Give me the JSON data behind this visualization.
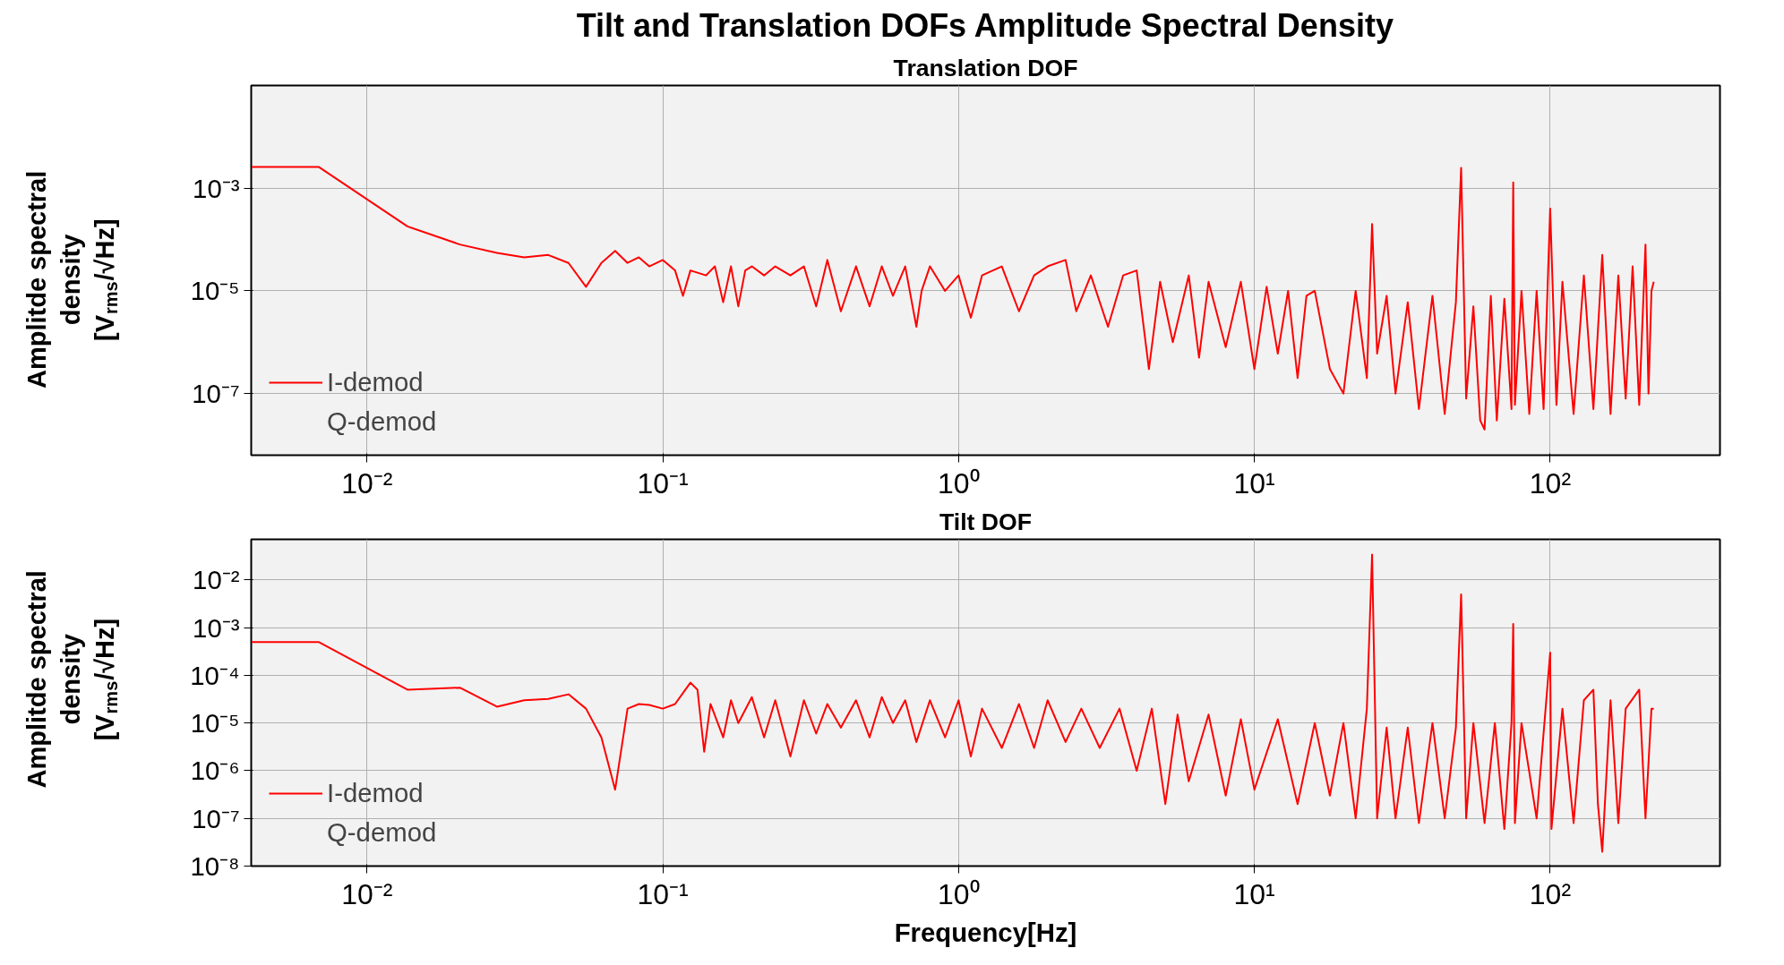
{
  "chart_data": [
    {
      "type": "line",
      "title": "Tilt and Translation DOFs Amplitude Spectral Density",
      "subtitle": "Translation DOF",
      "ylabel": "Amplitde spectral density [V$_{rms}$/√Hz]",
      "log": "xy",
      "grid": true,
      "legend": "bottom left",
      "xlim": [
        0.00406,
        375
      ],
      "ylim": [
        6.3e-09,
        0.1
      ],
      "xticks": [
        {
          "value": 0.01,
          "label": "10⁻²"
        },
        {
          "value": 0.1,
          "label": "10⁻¹"
        },
        {
          "value": 1,
          "label": "10⁰"
        },
        {
          "value": 10,
          "label": "10¹"
        },
        {
          "value": 100,
          "label": "10²"
        }
      ],
      "yticks": [
        {
          "value": 0.001,
          "label": "10⁻³"
        },
        {
          "value": 1e-05,
          "label": "10⁻⁵"
        },
        {
          "value": 1e-07,
          "label": "10⁻⁷"
        }
      ],
      "series": [
        {
          "name": "I-demod",
          "color": "#ff0000",
          "x": [
            0.00406,
            0.00686,
            0.0137,
            0.0206,
            0.0275,
            0.034,
            0.041,
            0.048,
            0.055,
            0.062,
            0.069,
            0.076,
            0.083,
            0.09,
            0.1,
            0.11,
            0.117,
            0.124,
            0.14,
            0.15,
            0.16,
            0.17,
            0.18,
            0.19,
            0.2,
            0.22,
            0.24,
            0.27,
            0.3,
            0.33,
            0.36,
            0.4,
            0.45,
            0.5,
            0.55,
            0.6,
            0.66,
            0.72,
            0.75,
            0.8,
            0.9,
            1.0,
            1.1,
            1.2,
            1.4,
            1.6,
            1.8,
            2.0,
            2.3,
            2.5,
            2.8,
            3.2,
            3.6,
            4.0,
            4.4,
            4.8,
            5.3,
            6.0,
            6.5,
            7.0,
            8.0,
            9.0,
            10,
            11,
            12,
            13,
            14,
            15,
            16,
            18,
            20,
            22,
            24,
            25,
            26,
            28,
            30,
            33,
            36,
            40,
            44,
            48,
            50,
            52,
            55,
            58,
            60,
            63,
            66,
            70,
            74,
            75,
            76,
            80,
            85,
            90,
            95,
            100,
            105,
            110,
            120,
            130,
            140,
            150,
            160,
            170,
            180,
            190,
            200,
            210,
            215,
            220,
            224
          ],
          "values": [
            0.0026,
            0.0026,
            0.00018,
            8e-05,
            5.5e-05,
            4.5e-05,
            5e-05,
            3.5e-05,
            1.2e-05,
            3.5e-05,
            6e-05,
            3.5e-05,
            4.5e-05,
            3e-05,
            4e-05,
            2.5e-05,
            8e-06,
            2.5e-05,
            2e-05,
            3e-05,
            6e-06,
            3e-05,
            5e-06,
            2.5e-05,
            3e-05,
            2e-05,
            3e-05,
            2e-05,
            3e-05,
            5e-06,
            4e-05,
            4e-06,
            3e-05,
            5e-06,
            3e-05,
            8e-06,
            3e-05,
            2e-06,
            1e-05,
            3e-05,
            1e-05,
            2e-05,
            3e-06,
            2e-05,
            3e-05,
            4e-06,
            2e-05,
            3e-05,
            4e-05,
            4e-06,
            2e-05,
            2e-06,
            2e-05,
            2.5e-05,
            3e-07,
            1.5e-05,
            1e-06,
            2e-05,
            5e-07,
            1.5e-05,
            8e-07,
            1.5e-05,
            3e-07,
            1.2e-05,
            6e-07,
            1e-05,
            2e-07,
            8e-06,
            1e-05,
            3e-07,
            1e-07,
            1e-05,
            2e-07,
            0.0002,
            6e-07,
            8e-06,
            1e-07,
            6e-06,
            5e-08,
            8e-06,
            4e-08,
            6e-06,
            0.0025,
            8e-08,
            5e-06,
            3e-08,
            2e-08,
            8e-06,
            3e-08,
            7e-06,
            5e-08,
            0.0013,
            6e-08,
            1e-05,
            4e-08,
            1e-05,
            5e-08,
            0.0004,
            6e-08,
            1.5e-05,
            4e-08,
            2e-05,
            5e-08,
            5e-05,
            4e-08,
            2e-05,
            8e-08,
            3e-05,
            6e-08,
            8e-05,
            1e-07,
            1e-05,
            1.5e-05
          ]
        },
        {
          "name": "Q-demod",
          "color": null
        }
      ]
    },
    {
      "type": "line",
      "title": "Tilt DOF",
      "xlabel": "Frequency[Hz]",
      "ylabel": "Amplitde spectral density [V$_{rms}$/√Hz]",
      "log": "xy",
      "grid": true,
      "legend": "bottom left",
      "xlim": [
        0.00406,
        375
      ],
      "ylim": [
        1e-08,
        0.071
      ],
      "xticks": [
        {
          "value": 0.01,
          "label": "10⁻²"
        },
        {
          "value": 0.1,
          "label": "10⁻¹"
        },
        {
          "value": 1,
          "label": "10⁰"
        },
        {
          "value": 10,
          "label": "10¹"
        },
        {
          "value": 100,
          "label": "10²"
        }
      ],
      "yticks": [
        {
          "value": 0.01,
          "label": "10⁻²"
        },
        {
          "value": 0.001,
          "label": "10⁻³"
        },
        {
          "value": 0.0001,
          "label": "10⁻⁴"
        },
        {
          "value": 1e-05,
          "label": "10⁻⁵"
        },
        {
          "value": 1e-06,
          "label": "10⁻⁶"
        },
        {
          "value": 1e-07,
          "label": "10⁻⁷"
        },
        {
          "value": 1e-08,
          "label": "10⁻⁸"
        }
      ],
      "series": [
        {
          "name": "I-demod",
          "color": "#ff0000",
          "x": [
            0.00406,
            0.00686,
            0.0137,
            0.0206,
            0.0275,
            0.034,
            0.041,
            0.048,
            0.055,
            0.062,
            0.069,
            0.076,
            0.083,
            0.09,
            0.1,
            0.11,
            0.124,
            0.131,
            0.138,
            0.145,
            0.16,
            0.17,
            0.18,
            0.2,
            0.22,
            0.24,
            0.27,
            0.3,
            0.33,
            0.36,
            0.4,
            0.45,
            0.5,
            0.55,
            0.6,
            0.66,
            0.72,
            0.8,
            0.9,
            1.0,
            1.1,
            1.2,
            1.4,
            1.6,
            1.8,
            2.0,
            2.3,
            2.6,
            3.0,
            3.5,
            4.0,
            4.5,
            5.0,
            5.5,
            6.0,
            7.0,
            8.0,
            9.0,
            10,
            12,
            14,
            16,
            18,
            20,
            22,
            24,
            25,
            26,
            28,
            30,
            33,
            36,
            40,
            44,
            48,
            50,
            52,
            55,
            60,
            65,
            70,
            74,
            75,
            76,
            80,
            90,
            100,
            101,
            110,
            120,
            130,
            140,
            145,
            150,
            160,
            170,
            180,
            200,
            210,
            220,
            224
          ],
          "values": [
            0.0005,
            0.0005,
            5e-05,
            5.5e-05,
            2.2e-05,
            3e-05,
            3.2e-05,
            4e-05,
            2e-05,
            5e-06,
            4e-07,
            2e-05,
            2.5e-05,
            2.4e-05,
            2e-05,
            2.5e-05,
            7e-05,
            5e-05,
            2.5e-06,
            2.5e-05,
            5e-06,
            3e-05,
            1e-05,
            3.5e-05,
            5e-06,
            3e-05,
            2e-06,
            3e-05,
            6e-06,
            2.5e-05,
            8e-06,
            3e-05,
            5e-06,
            3.5e-05,
            1e-05,
            3e-05,
            4e-06,
            3e-05,
            5e-06,
            3e-05,
            2e-06,
            2e-05,
            3e-06,
            2.5e-05,
            3e-06,
            3e-05,
            4e-06,
            2e-05,
            3e-06,
            2e-05,
            1e-06,
            2e-05,
            2e-07,
            1.5e-05,
            6e-07,
            1.5e-05,
            3e-07,
            1.2e-05,
            4e-07,
            1.2e-05,
            2e-07,
            1e-05,
            3e-07,
            1e-05,
            1e-07,
            2e-05,
            0.034,
            1e-07,
            8e-06,
            1e-07,
            8e-06,
            8e-08,
            1e-05,
            1e-07,
            8e-06,
            0.005,
            1e-07,
            1e-05,
            8e-08,
            1e-05,
            6e-08,
            1e-05,
            0.0012,
            8e-08,
            1e-05,
            1e-07,
            0.0003,
            6e-08,
            2e-05,
            8e-08,
            3e-05,
            5e-05,
            2e-07,
            2e-08,
            3e-05,
            8e-08,
            2e-05,
            5e-05,
            1e-07,
            2e-05,
            2e-05
          ]
        },
        {
          "name": "Q-demod",
          "color": null
        }
      ]
    }
  ]
}
